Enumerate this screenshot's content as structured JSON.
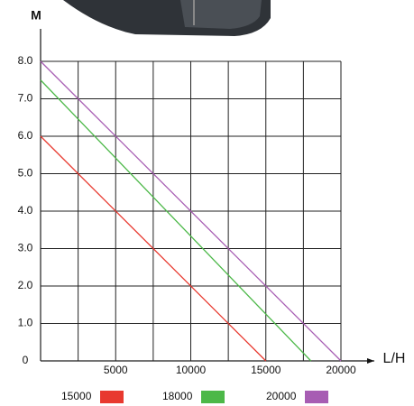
{
  "chart_data": {
    "type": "line",
    "y_label": "M",
    "x_label": "L/H",
    "series": [
      {
        "name": "15000",
        "color": "#e8392f",
        "x": [
          0,
          15000
        ],
        "values": [
          6,
          0
        ]
      },
      {
        "name": "18000",
        "color": "#4cb848",
        "x": [
          0,
          18000
        ],
        "values": [
          7.5,
          0
        ]
      },
      {
        "name": "20000",
        "color": "#a75db3",
        "x": [
          0,
          20000
        ],
        "values": [
          8,
          0
        ]
      }
    ],
    "xlim": [
      0,
      20000
    ],
    "ylim": [
      0,
      8
    ],
    "xticks": [
      5000,
      10000,
      15000,
      20000
    ],
    "xgrid": [
      0,
      2500,
      5000,
      7500,
      10000,
      12500,
      15000,
      17500,
      20000
    ],
    "yticks": [
      0,
      {
        "value": 1,
        "label": "1.0"
      },
      {
        "value": 2,
        "label": "2.0"
      },
      {
        "value": 3,
        "label": "3.0"
      },
      {
        "value": 4,
        "label": "4.0"
      },
      {
        "value": 5,
        "label": "5.0"
      },
      {
        "value": 6,
        "label": "6.0"
      },
      {
        "value": 7,
        "label": "7.0"
      },
      {
        "value": 8,
        "label": "8.0"
      }
    ],
    "grid": true
  }
}
